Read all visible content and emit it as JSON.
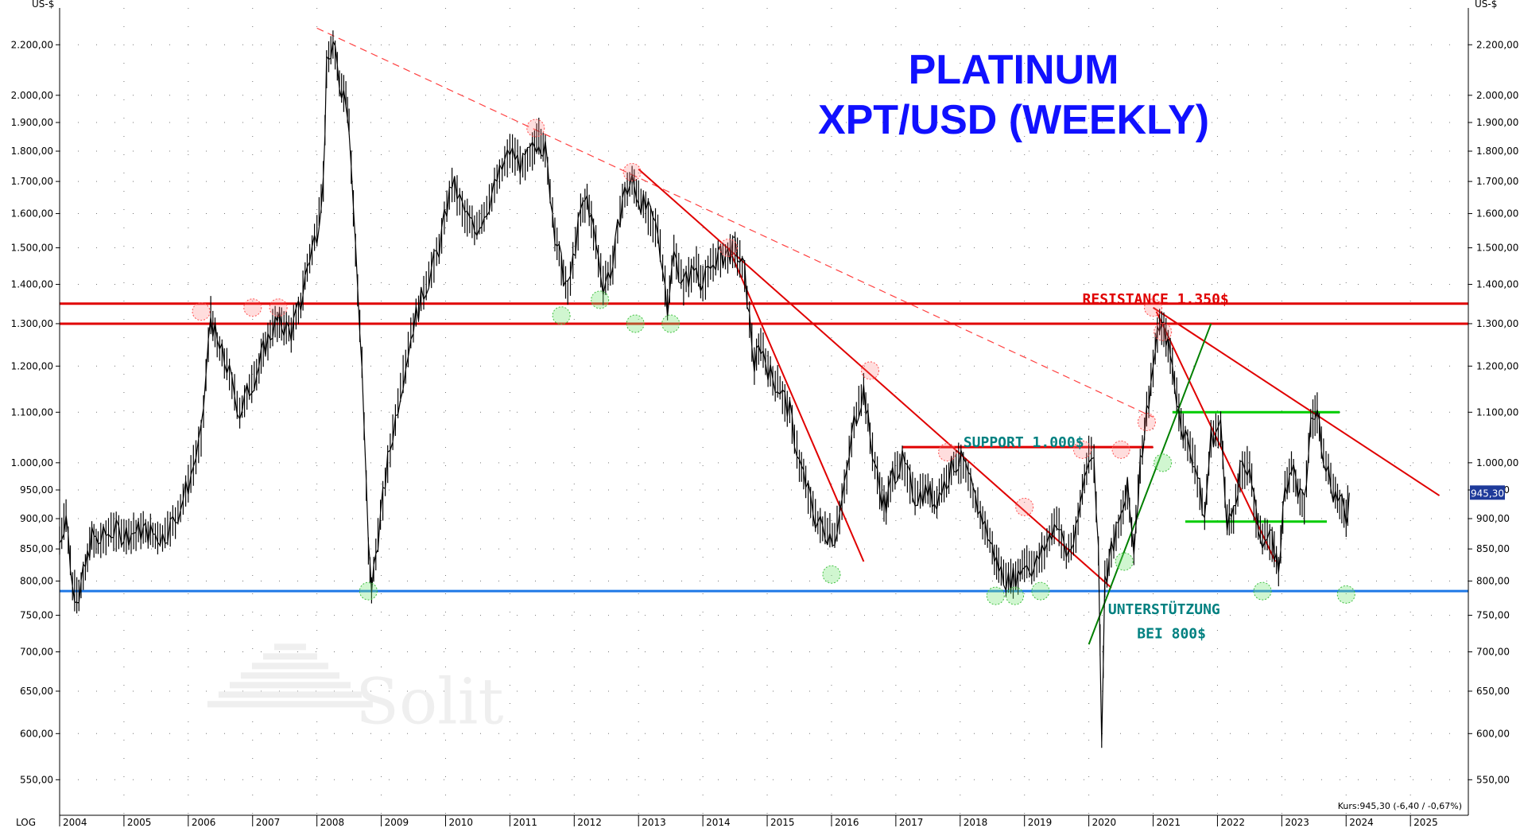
{
  "chart_data": {
    "type": "line",
    "title": "PLATINUM",
    "subtitle": "XPT/USD (WEEKLY)",
    "ylabel": "US-$",
    "scale_label": "LOG",
    "y_scale": "log",
    "ylim": [
      530,
      2330
    ],
    "xlim": [
      2004.0,
      2025.9
    ],
    "x_ticks": [
      "2004",
      "2005",
      "2006",
      "2007",
      "2008",
      "2009",
      "2010",
      "2011",
      "2012",
      "2013",
      "2014",
      "2015",
      "2016",
      "2017",
      "2018",
      "2019",
      "2020",
      "2021",
      "2022",
      "2023",
      "2024",
      "2025"
    ],
    "y_ticks": [
      {
        "value": 550,
        "label": "550,00"
      },
      {
        "value": 600,
        "label": "600,00"
      },
      {
        "value": 650,
        "label": "650,00"
      },
      {
        "value": 700,
        "label": "700,00"
      },
      {
        "value": 750,
        "label": "750,00"
      },
      {
        "value": 800,
        "label": "800,00"
      },
      {
        "value": 850,
        "label": "850,00"
      },
      {
        "value": 900,
        "label": "900,00"
      },
      {
        "value": 950,
        "label": "950,00"
      },
      {
        "value": 1000,
        "label": "1.000,00"
      },
      {
        "value": 1100,
        "label": "1.100,00"
      },
      {
        "value": 1200,
        "label": "1.200,00"
      },
      {
        "value": 1300,
        "label": "1.300,00"
      },
      {
        "value": 1400,
        "label": "1.400,00"
      },
      {
        "value": 1500,
        "label": "1.500,00"
      },
      {
        "value": 1600,
        "label": "1.600,00"
      },
      {
        "value": 1700,
        "label": "1.700,00"
      },
      {
        "value": 1800,
        "label": "1.800,00"
      },
      {
        "value": 1900,
        "label": "1.900,00"
      },
      {
        "value": 2000,
        "label": "2.000,00"
      },
      {
        "value": 2200,
        "label": "2.200,00"
      }
    ],
    "grid": true,
    "series": [
      {
        "x": [
          2004.0,
          2004.1,
          2004.2,
          2004.3,
          2004.4,
          2004.5,
          2004.6,
          2004.8,
          2005.0,
          2005.3,
          2005.6,
          2005.8,
          2006.0,
          2006.2,
          2006.35,
          2006.45,
          2006.6,
          2006.8,
          2006.95,
          2007.1,
          2007.2,
          2007.35,
          2007.45,
          2007.6,
          2007.75,
          2007.85,
          2008.0,
          2008.1,
          2008.15,
          2008.25,
          2008.35,
          2008.45,
          2008.5,
          2008.6,
          2008.7,
          2008.8,
          2008.85,
          2008.95,
          2009.1,
          2009.3,
          2009.5,
          2009.7,
          2009.9,
          2010.1,
          2010.3,
          2010.45,
          2010.6,
          2010.8,
          2011.0,
          2011.2,
          2011.35,
          2011.45,
          2011.55,
          2011.7,
          2011.8,
          2011.9,
          2012.1,
          2012.2,
          2012.3,
          2012.45,
          2012.6,
          2012.75,
          2012.9,
          2013.0,
          2013.15,
          2013.3,
          2013.45,
          2013.55,
          2013.7,
          2013.9,
          2014.0,
          2014.2,
          2014.35,
          2014.5,
          2014.65,
          2014.8,
          2014.9,
          2015.05,
          2015.2,
          2015.35,
          2015.5,
          2015.6,
          2015.75,
          2015.9,
          2016.05,
          2016.2,
          2016.35,
          2016.5,
          2016.6,
          2016.75,
          2016.85,
          2016.95,
          2017.1,
          2017.3,
          2017.5,
          2017.6,
          2017.75,
          2017.9,
          2018.05,
          2018.2,
          2018.35,
          2018.5,
          2018.6,
          2018.75,
          2018.9,
          2019.0,
          2019.15,
          2019.35,
          2019.5,
          2019.65,
          2019.8,
          2019.9,
          2020.0,
          2020.08,
          2020.15,
          2020.2,
          2020.25,
          2020.35,
          2020.5,
          2020.6,
          2020.7,
          2020.8,
          2020.9,
          2021.0,
          2021.1,
          2021.2,
          2021.3,
          2021.4,
          2021.5,
          2021.65,
          2021.8,
          2021.9,
          2022.05,
          2022.15,
          2022.25,
          2022.35,
          2022.5,
          2022.6,
          2022.7,
          2022.85,
          2022.95,
          2023.05,
          2023.15,
          2023.25,
          2023.35,
          2023.45,
          2023.55,
          2023.65,
          2023.8,
          2023.9,
          2024.0,
          2024.05
        ],
        "values": [
          860,
          910,
          790,
          780,
          820,
          870,
          860,
          880,
          875,
          880,
          870,
          900,
          960,
          1050,
          1320,
          1250,
          1200,
          1100,
          1150,
          1200,
          1250,
          1300,
          1300,
          1280,
          1350,
          1450,
          1550,
          1700,
          2100,
          2200,
          2050,
          2000,
          1900,
          1500,
          1200,
          850,
          790,
          870,
          1000,
          1150,
          1300,
          1400,
          1500,
          1700,
          1600,
          1550,
          1600,
          1700,
          1800,
          1750,
          1800,
          1850,
          1800,
          1550,
          1450,
          1380,
          1600,
          1650,
          1550,
          1400,
          1450,
          1650,
          1700,
          1650,
          1600,
          1550,
          1350,
          1480,
          1400,
          1450,
          1400,
          1470,
          1480,
          1500,
          1430,
          1200,
          1250,
          1180,
          1150,
          1100,
          1000,
          960,
          900,
          880,
          870,
          950,
          1080,
          1150,
          1050,
          950,
          920,
          980,
          1000,
          940,
          950,
          930,
          960,
          1000,
          1000,
          940,
          900,
          850,
          820,
          800,
          810,
          830,
          820,
          860,
          900,
          840,
          870,
          950,
          1020,
          1000,
          850,
          600,
          800,
          850,
          900,
          950,
          850,
          1000,
          1100,
          1200,
          1300,
          1270,
          1200,
          1100,
          1050,
          1000,
          900,
          1050,
          1070,
          900,
          900,
          980,
          1000,
          900,
          870,
          860,
          820,
          950,
          1000,
          950,
          920,
          1080,
          1100,
          1020,
          950,
          930,
          900,
          945
        ]
      }
    ],
    "annotations": [
      {
        "text": "RESISTANCE 1.350$",
        "x": 2019.9,
        "y": 1350,
        "color": "#e00000"
      },
      {
        "text": "SUPPORT 1.000$",
        "x": 2018.05,
        "y": 1030,
        "color": "#008080"
      },
      {
        "text": "UNTERSTÜTZUNG",
        "x": 2020.3,
        "y": 752,
        "color": "#008080"
      },
      {
        "text": "BEI 800$",
        "x": 2020.75,
        "y": 718,
        "color": "#008080"
      }
    ],
    "horizontal_lines": [
      {
        "y": 1350,
        "color": "#e00000",
        "x1": 2004.0,
        "x2": 2025.9
      },
      {
        "y": 1300,
        "color": "#e00000",
        "x1": 2004.0,
        "x2": 2025.9
      },
      {
        "y": 785,
        "color": "#1e78e6",
        "x1": 2004.0,
        "x2": 2025.9
      },
      {
        "y": 1030,
        "color": "#e00000",
        "x1": 2017.1,
        "x2": 2021.0
      },
      {
        "y": 1100,
        "color": "#00cc00",
        "x1": 2021.3,
        "x2": 2023.9
      },
      {
        "y": 895,
        "color": "#00cc00",
        "x1": 2021.5,
        "x2": 2023.7
      }
    ],
    "trend_lines": [
      {
        "x1": 2008.0,
        "y1": 2270,
        "x2": 2021.0,
        "y2": 1090,
        "color": "#ff4040",
        "dashed": true
      },
      {
        "x1": 2013.0,
        "y1": 1740,
        "x2": 2020.35,
        "y2": 790,
        "color": "#e00000",
        "dashed": false
      },
      {
        "x1": 2014.4,
        "y1": 1500,
        "x2": 2016.5,
        "y2": 830,
        "color": "#e00000",
        "dashed": false
      },
      {
        "x1": 2021.0,
        "y1": 1340,
        "x2": 2025.45,
        "y2": 940,
        "color": "#e00000",
        "dashed": false
      },
      {
        "x1": 2021.05,
        "y1": 1330,
        "x2": 2022.9,
        "y2": 830,
        "color": "#e00000",
        "dashed": false
      },
      {
        "x1": 2020.0,
        "y1": 710,
        "x2": 2021.9,
        "y2": 1300,
        "color": "#008000",
        "dashed": false
      }
    ],
    "peak_markers": [
      {
        "x": 2006.2,
        "y": 1330
      },
      {
        "x": 2007.0,
        "y": 1340
      },
      {
        "x": 2007.4,
        "y": 1340
      },
      {
        "x": 2011.4,
        "y": 1880
      },
      {
        "x": 2012.9,
        "y": 1730
      },
      {
        "x": 2014.4,
        "y": 1500
      },
      {
        "x": 2016.6,
        "y": 1190
      },
      {
        "x": 2017.8,
        "y": 1020
      },
      {
        "x": 2019.0,
        "y": 920
      },
      {
        "x": 2019.9,
        "y": 1025
      },
      {
        "x": 2020.5,
        "y": 1025
      },
      {
        "x": 2020.9,
        "y": 1080
      },
      {
        "x": 2021.0,
        "y": 1340
      },
      {
        "x": 2021.15,
        "y": 1280
      }
    ],
    "trough_markers": [
      {
        "x": 2008.8,
        "y": 785
      },
      {
        "x": 2011.8,
        "y": 1320
      },
      {
        "x": 2012.4,
        "y": 1360
      },
      {
        "x": 2012.95,
        "y": 1300
      },
      {
        "x": 2013.5,
        "y": 1300
      },
      {
        "x": 2016.0,
        "y": 810
      },
      {
        "x": 2018.55,
        "y": 778
      },
      {
        "x": 2018.85,
        "y": 778
      },
      {
        "x": 2019.25,
        "y": 785
      },
      {
        "x": 2020.55,
        "y": 830
      },
      {
        "x": 2021.15,
        "y": 1000
      },
      {
        "x": 2022.7,
        "y": 785
      },
      {
        "x": 2024.0,
        "y": 780
      }
    ],
    "last_price": {
      "value": 945.3,
      "label": "945,30"
    },
    "quote": "Kurs:945,30 (-6,40 / -0,67%)",
    "watermark": "Solit"
  }
}
